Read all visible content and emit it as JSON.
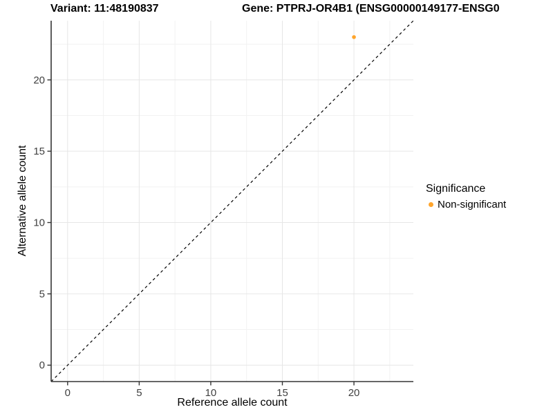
{
  "titles": {
    "variant": "Variant: 11:48190837",
    "gene": "Gene: PTPRJ-OR4B1 (ENSG00000149177-ENSG0"
  },
  "legend": {
    "title": "Significance",
    "items": [
      {
        "label": "Non-significant",
        "color": "#FFA52C"
      }
    ]
  },
  "colors": {
    "axis_line": "#333333",
    "tick_label": "#404040",
    "major_grid": "#E6E6E6",
    "minor_grid": "#F2F2F2",
    "identity_line": "#000000",
    "background": "#FFFFFF"
  },
  "chart_data": {
    "type": "scatter",
    "title_left": "Variant: 11:48190837",
    "title_right": "Gene: PTPRJ-OR4B1 (ENSG00000149177-ENSG0",
    "xlabel": "Reference allele count",
    "ylabel": "Alternative allele count",
    "xlim": [
      -1.15,
      24.15
    ],
    "ylim": [
      -1.15,
      24.15
    ],
    "x_ticks": [
      0,
      5,
      10,
      15,
      20
    ],
    "y_ticks": [
      0,
      5,
      10,
      15,
      20
    ],
    "grid": "major+minor",
    "legend_position": "right",
    "identity_line": {
      "style": "dashed",
      "color": "#000000",
      "slope": 1,
      "intercept": 0
    },
    "series": [
      {
        "name": "Non-significant",
        "color": "#FFA52C",
        "points": [
          {
            "x": 20,
            "y": 23
          }
        ]
      }
    ]
  }
}
